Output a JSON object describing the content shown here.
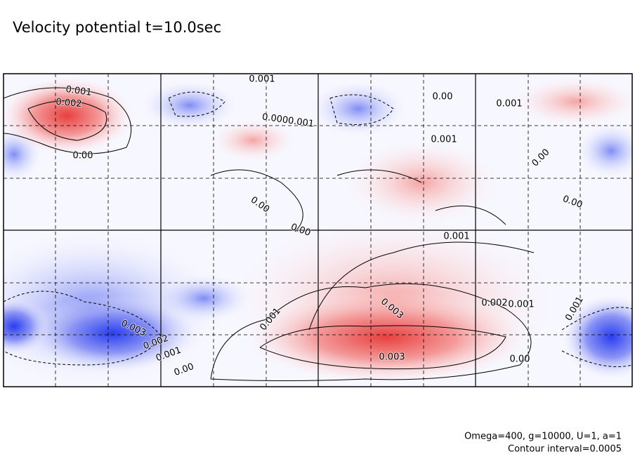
{
  "chart_data": {
    "type": "contour",
    "title": "Velocity potential t=10.0sec",
    "contour_labels": [
      "0.001",
      "0.002",
      "0.00",
      "0.001",
      "0.0000.001",
      "0.00",
      "0.001",
      "0.001",
      "0.00",
      "0.00",
      "0.00",
      "0.00",
      "0.001",
      "0.003",
      "0.002",
      "0.001",
      "0.001",
      "0.003",
      "0.002",
      "0.001",
      "0.00",
      "0.003",
      "0.00",
      "0.001"
    ],
    "notes": [
      "Omega=400, g=10000, U=1, a=1",
      "Contour interval=0.0005"
    ]
  }
}
